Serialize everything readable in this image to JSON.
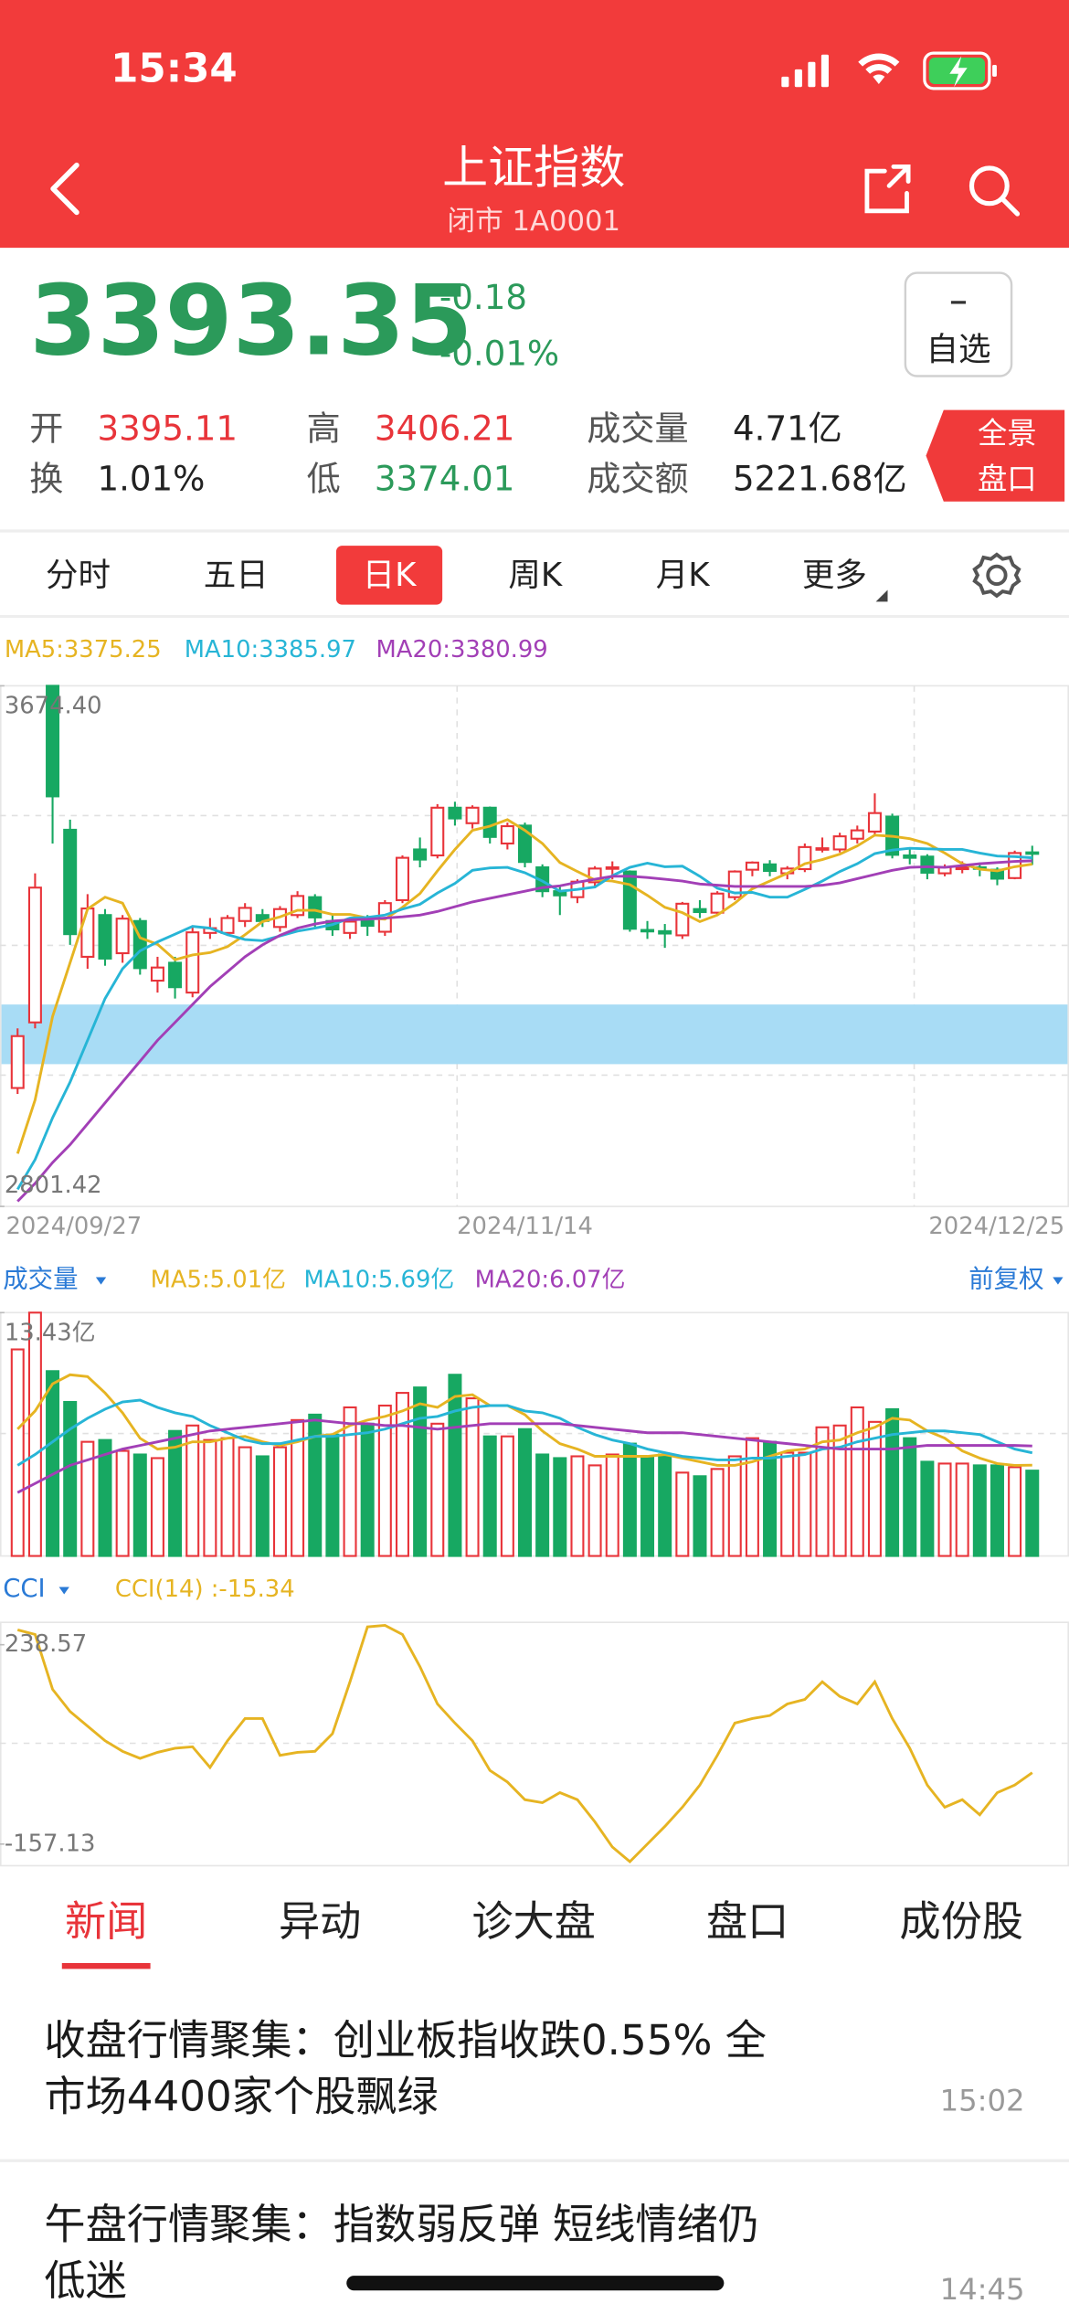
{
  "status_bar": {
    "time": "15:34"
  },
  "header": {
    "title": "上证指数",
    "subtitle": "闭市 1A0001"
  },
  "quote": {
    "price": "3393.35",
    "change": "-0.18",
    "change_percent": "-0.01%",
    "color": "#2b9a5a"
  },
  "watch_button": "自选",
  "stats": [
    {
      "label": "开",
      "value": "3395.11",
      "color": "#e8343a"
    },
    {
      "label": "换",
      "value": "1.01%",
      "color": "#222222"
    },
    {
      "label": "高",
      "value": "3406.21",
      "color": "#e8343a"
    },
    {
      "label": "低",
      "value": "3374.01",
      "color": "#2b9a5a"
    },
    {
      "label": "成交量",
      "value": "4.71亿",
      "color": "#222222"
    },
    {
      "label": "成交额",
      "value": "5221.68亿",
      "color": "#222222"
    }
  ],
  "panorama_button": [
    "全景",
    "盘口"
  ],
  "period_tabs": [
    "分时",
    "五日",
    "日K",
    "周K",
    "月K",
    "更多"
  ],
  "active_period": 2,
  "chart_data": [
    {
      "type": "candlestick",
      "categories": [
        "2024/09/27",
        null,
        null,
        null,
        null,
        null,
        null,
        null,
        null,
        null,
        null,
        null,
        null,
        null,
        null,
        null,
        null,
        null,
        null,
        null,
        null,
        null,
        null,
        null,
        null,
        null,
        null,
        null,
        null,
        "2024/11/14",
        null,
        null,
        null,
        null,
        null,
        null,
        null,
        null,
        null,
        null,
        null,
        null,
        null,
        null,
        null,
        null,
        null,
        null,
        null,
        null,
        null,
        null,
        null,
        null,
        null,
        null,
        null,
        null,
        "2024/12/25"
      ],
      "open": [
        3000,
        3110,
        3674.4,
        3433,
        3220,
        3290,
        3226,
        3280,
        3180,
        3210,
        3160,
        3260,
        3260,
        3280,
        3290,
        3270,
        3290,
        3320,
        3280,
        3260,
        3280,
        3262,
        3315,
        3400,
        3390,
        3470,
        3444,
        3470,
        3410,
        3440,
        3370,
        3330,
        3320,
        3345,
        3370,
        3363,
        3265,
        3263,
        3256,
        3300,
        3294,
        3320,
        3366,
        3375,
        3360,
        3367,
        3400,
        3400,
        3418,
        3430,
        3455,
        3390,
        3388,
        3360,
        3367,
        3370,
        3366,
        3352,
        3395.11
      ],
      "high": [
        3100,
        3360,
        3674.4,
        3450,
        3325,
        3300,
        3290,
        3285,
        3220,
        3220,
        3270,
        3285,
        3290,
        3310,
        3300,
        3305,
        3330,
        3325,
        3290,
        3285,
        3290,
        3315,
        3390,
        3420,
        3476,
        3480,
        3474,
        3472,
        3445,
        3445,
        3375,
        3340,
        3350,
        3372,
        3380,
        3365,
        3280,
        3275,
        3312,
        3315,
        3330,
        3365,
        3380,
        3382,
        3372,
        3410,
        3420,
        3428,
        3440,
        3494,
        3460,
        3400,
        3392,
        3375,
        3380,
        3378,
        3370,
        3398,
        3406.21
      ],
      "low": [
        2990,
        3100,
        3410,
        3240,
        3200,
        3205,
        3210,
        3190,
        3160,
        3150,
        3152,
        3250,
        3255,
        3270,
        3270,
        3262,
        3285,
        3270,
        3255,
        3250,
        3255,
        3255,
        3310,
        3370,
        3385,
        3440,
        3435,
        3410,
        3400,
        3370,
        3320,
        3290,
        3310,
        3335,
        3350,
        3262,
        3250,
        3235,
        3250,
        3285,
        3290,
        3315,
        3355,
        3355,
        3350,
        3362,
        3395,
        3395,
        3410,
        3425,
        3385,
        3375,
        3350,
        3355,
        3360,
        3355,
        3340,
        3350,
        3374.01
      ],
      "close": [
        3087,
        3336,
        3489,
        3258,
        3301,
        3217,
        3284,
        3201,
        3202,
        3169,
        3261,
        3268,
        3285,
        3302,
        3280,
        3300,
        3322,
        3286,
        3266,
        3279,
        3272,
        3310,
        3386,
        3383,
        3470,
        3452,
        3470,
        3421,
        3439,
        3379,
        3330,
        3323,
        3346,
        3368,
        3370,
        3267,
        3263,
        3259,
        3309,
        3295,
        3326,
        3363,
        3378,
        3364,
        3368,
        3404,
        3402,
        3422,
        3432,
        3461,
        3391,
        3386,
        3361,
        3370,
        3370,
        3368,
        3351,
        3394,
        3393.35
      ],
      "up_color": "#e8343a",
      "down_color": "#17a862",
      "zone": [
        3040,
        3140
      ],
      "zone_color": "#a8dcf5",
      "series": [
        {
          "name": "MA5:3375.25",
          "color": "#e6b422",
          "values": [
            2890,
            2980,
            3120,
            3210,
            3300,
            3320,
            3310,
            3252,
            3241,
            3215,
            3223,
            3227,
            3237,
            3257,
            3279,
            3287,
            3298,
            3298,
            3291,
            3291,
            3285,
            3283,
            3303,
            3326,
            3364,
            3400,
            3432,
            3439,
            3450,
            3432,
            3410,
            3378,
            3363,
            3349,
            3347,
            3341,
            3323,
            3303,
            3294,
            3279,
            3290,
            3310,
            3334,
            3347,
            3360,
            3376,
            3383,
            3392,
            3406,
            3424,
            3422,
            3418,
            3410,
            3394,
            3376,
            3367,
            3364,
            3371,
            3375.25
          ]
        },
        {
          "name": "MA10:3385.97",
          "color": "#27b5d6",
          "values": [
            2830,
            2880,
            2950,
            3010,
            3080,
            3150,
            3200,
            3230,
            3245,
            3258,
            3271,
            3268,
            3257,
            3249,
            3247,
            3255,
            3263,
            3268,
            3274,
            3285,
            3286,
            3290,
            3300,
            3308,
            3327,
            3343,
            3365,
            3369,
            3370,
            3361,
            3347,
            3330,
            3333,
            3337,
            3356,
            3370,
            3377,
            3371,
            3372,
            3355,
            3335,
            3327,
            3328,
            3320,
            3320,
            3333,
            3347,
            3363,
            3376,
            3393,
            3399,
            3402,
            3401,
            3400,
            3400,
            3394,
            3389,
            3388,
            3385.97
          ]
        },
        {
          "name": "MA20:3380.99",
          "color": "#a23fb6",
          "values": [
            2810,
            2840,
            2875,
            2905,
            2940,
            2975,
            3010,
            3045,
            3080,
            3110,
            3140,
            3170,
            3195,
            3220,
            3240,
            3256,
            3268,
            3275,
            3280,
            3282,
            3283,
            3285,
            3287,
            3290,
            3296,
            3304,
            3312,
            3318,
            3324,
            3330,
            3336,
            3339,
            3345,
            3350,
            3355,
            3355,
            3353,
            3350,
            3347,
            3342,
            3340,
            3338,
            3338,
            3338,
            3338,
            3338,
            3340,
            3344,
            3351,
            3358,
            3365,
            3370,
            3371,
            3370,
            3373,
            3376,
            3378,
            3380,
            3380.99
          ]
        }
      ],
      "ylim": [
        2801.42,
        3674.4
      ],
      "yticks": [
        {
          "value": 3674.4,
          "label": "3674.40"
        },
        2801.42
      ]
    },
    {
      "type": "bar",
      "title": "成交量",
      "adjustment": "前复权",
      "values": [
        11.4,
        13.43,
        10.2,
        8.5,
        6.3,
        6.4,
        5.8,
        5.6,
        5.4,
        6.9,
        7.2,
        6.4,
        6.5,
        6.0,
        5.5,
        6.0,
        7.5,
        7.8,
        6.7,
        8.2,
        7.3,
        8.3,
        9.0,
        9.3,
        7.3,
        10.0,
        8.7,
        6.6,
        6.6,
        7.0,
        5.6,
        5.4,
        5.5,
        5.0,
        5.6,
        6.2,
        5.5,
        5.6,
        4.6,
        4.4,
        4.8,
        5.5,
        6.5,
        6.3,
        5.7,
        5.7,
        7.1,
        7.2,
        8.2,
        7.4,
        8.1,
        6.5,
        5.2,
        5.1,
        5.1,
        5.0,
        5.0,
        4.9,
        4.71
      ],
      "series": [
        {
          "name": "MA5:5.01亿",
          "color": "#e6b422",
          "values": [
            7,
            8,
            9.5,
            10,
            9.9,
            9,
            7.9,
            6.5,
            5.9,
            6.0,
            6.3,
            6.3,
            6.5,
            6.6,
            6.3,
            6.1,
            6.3,
            6.6,
            6.7,
            7.2,
            7.5,
            7.7,
            8.0,
            8.4,
            8.2,
            8.8,
            8.9,
            8.3,
            8.3,
            7.8,
            6.9,
            6.2,
            5.9,
            5.5,
            5.5,
            5.5,
            5.5,
            5.6,
            5.4,
            5.2,
            5.0,
            5.0,
            5.2,
            5.5,
            5.8,
            5.9,
            6.3,
            6.4,
            6.8,
            7.1,
            7.6,
            7.5,
            6.9,
            6.5,
            5.8,
            5.4,
            5.1,
            5.0,
            5.01
          ]
        },
        {
          "name": "MA10:5.69亿",
          "color": "#27b5d6",
          "values": [
            5,
            5.6,
            6.3,
            7,
            7.6,
            8.1,
            8.5,
            8.6,
            8.2,
            7.9,
            7.7,
            7.2,
            6.8,
            6.4,
            6.2,
            6.2,
            6.4,
            6.6,
            6.6,
            6.7,
            6.8,
            7.0,
            7.3,
            7.6,
            7.7,
            8.0,
            8.2,
            8.3,
            8.3,
            8.0,
            7.9,
            7.6,
            7.1,
            6.7,
            6.4,
            6.2,
            5.9,
            5.7,
            5.5,
            5.4,
            5.3,
            5.3,
            5.4,
            5.4,
            5.5,
            5.6,
            5.9,
            6.0,
            6.3,
            6.5,
            6.7,
            6.8,
            6.9,
            6.9,
            6.8,
            6.7,
            6.3,
            5.9,
            5.69
          ]
        },
        {
          "name": "MA20:6.07亿",
          "color": "#a23fb6",
          "values": [
            3.5,
            4,
            4.5,
            5,
            5.3,
            5.6,
            5.9,
            6.1,
            6.3,
            6.5,
            6.7,
            6.9,
            7.0,
            7.1,
            7.2,
            7.3,
            7.4,
            7.5,
            7.4,
            7.3,
            7.3,
            7.2,
            7.2,
            7.1,
            7.0,
            7.1,
            7.2,
            7.3,
            7.3,
            7.3,
            7.3,
            7.3,
            7.2,
            7.1,
            7.0,
            6.9,
            6.8,
            6.8,
            6.8,
            6.7,
            6.6,
            6.5,
            6.4,
            6.3,
            6.2,
            6.1,
            6.0,
            5.9,
            5.9,
            5.9,
            5.9,
            6.0,
            6.1,
            6.1,
            6.1,
            6.1,
            6.1,
            6.1,
            6.07
          ]
        }
      ],
      "ylim": [
        0,
        13.43
      ],
      "yticks": [
        {
          "value": 13.43,
          "label": "13.43亿"
        }
      ]
    },
    {
      "type": "line",
      "title": "CCI",
      "series": [
        {
          "name": "CCI(14) :-15.34",
          "color": "#e6b422",
          "values": [
            268,
            259,
            150,
            106,
            77,
            48,
            27,
            13,
            25,
            33,
            36,
            -5,
            48,
            92,
            92,
            19,
            25,
            27,
            62,
            165,
            274,
            277,
            259,
            195,
            121,
            83,
            48,
            -11,
            -34,
            -69,
            -75,
            -55,
            -69,
            -113,
            -163,
            -192,
            -157,
            -122,
            -84,
            -40,
            19,
            83,
            92,
            98,
            121,
            130,
            165,
            136,
            121,
            165,
            92,
            33,
            -40,
            -84,
            -69,
            -99,
            -55,
            -40,
            -15.34
          ]
        }
      ],
      "ylim": [
        -200,
        283
      ],
      "yticks": [
        238.57,
        -157.13
      ]
    }
  ],
  "news_tabs": [
    "新闻",
    "异动",
    "诊大盘",
    "盘口",
    "成份股"
  ],
  "active_news_tab": 0,
  "news": [
    {
      "title": "收盘行情聚集：创业板指收跌0.55% 全市场4400家个股飘绿",
      "time": "15:02"
    },
    {
      "title": "午盘行情聚集：指数弱反弹 短线情绪仍低迷",
      "time": "14:45"
    }
  ]
}
